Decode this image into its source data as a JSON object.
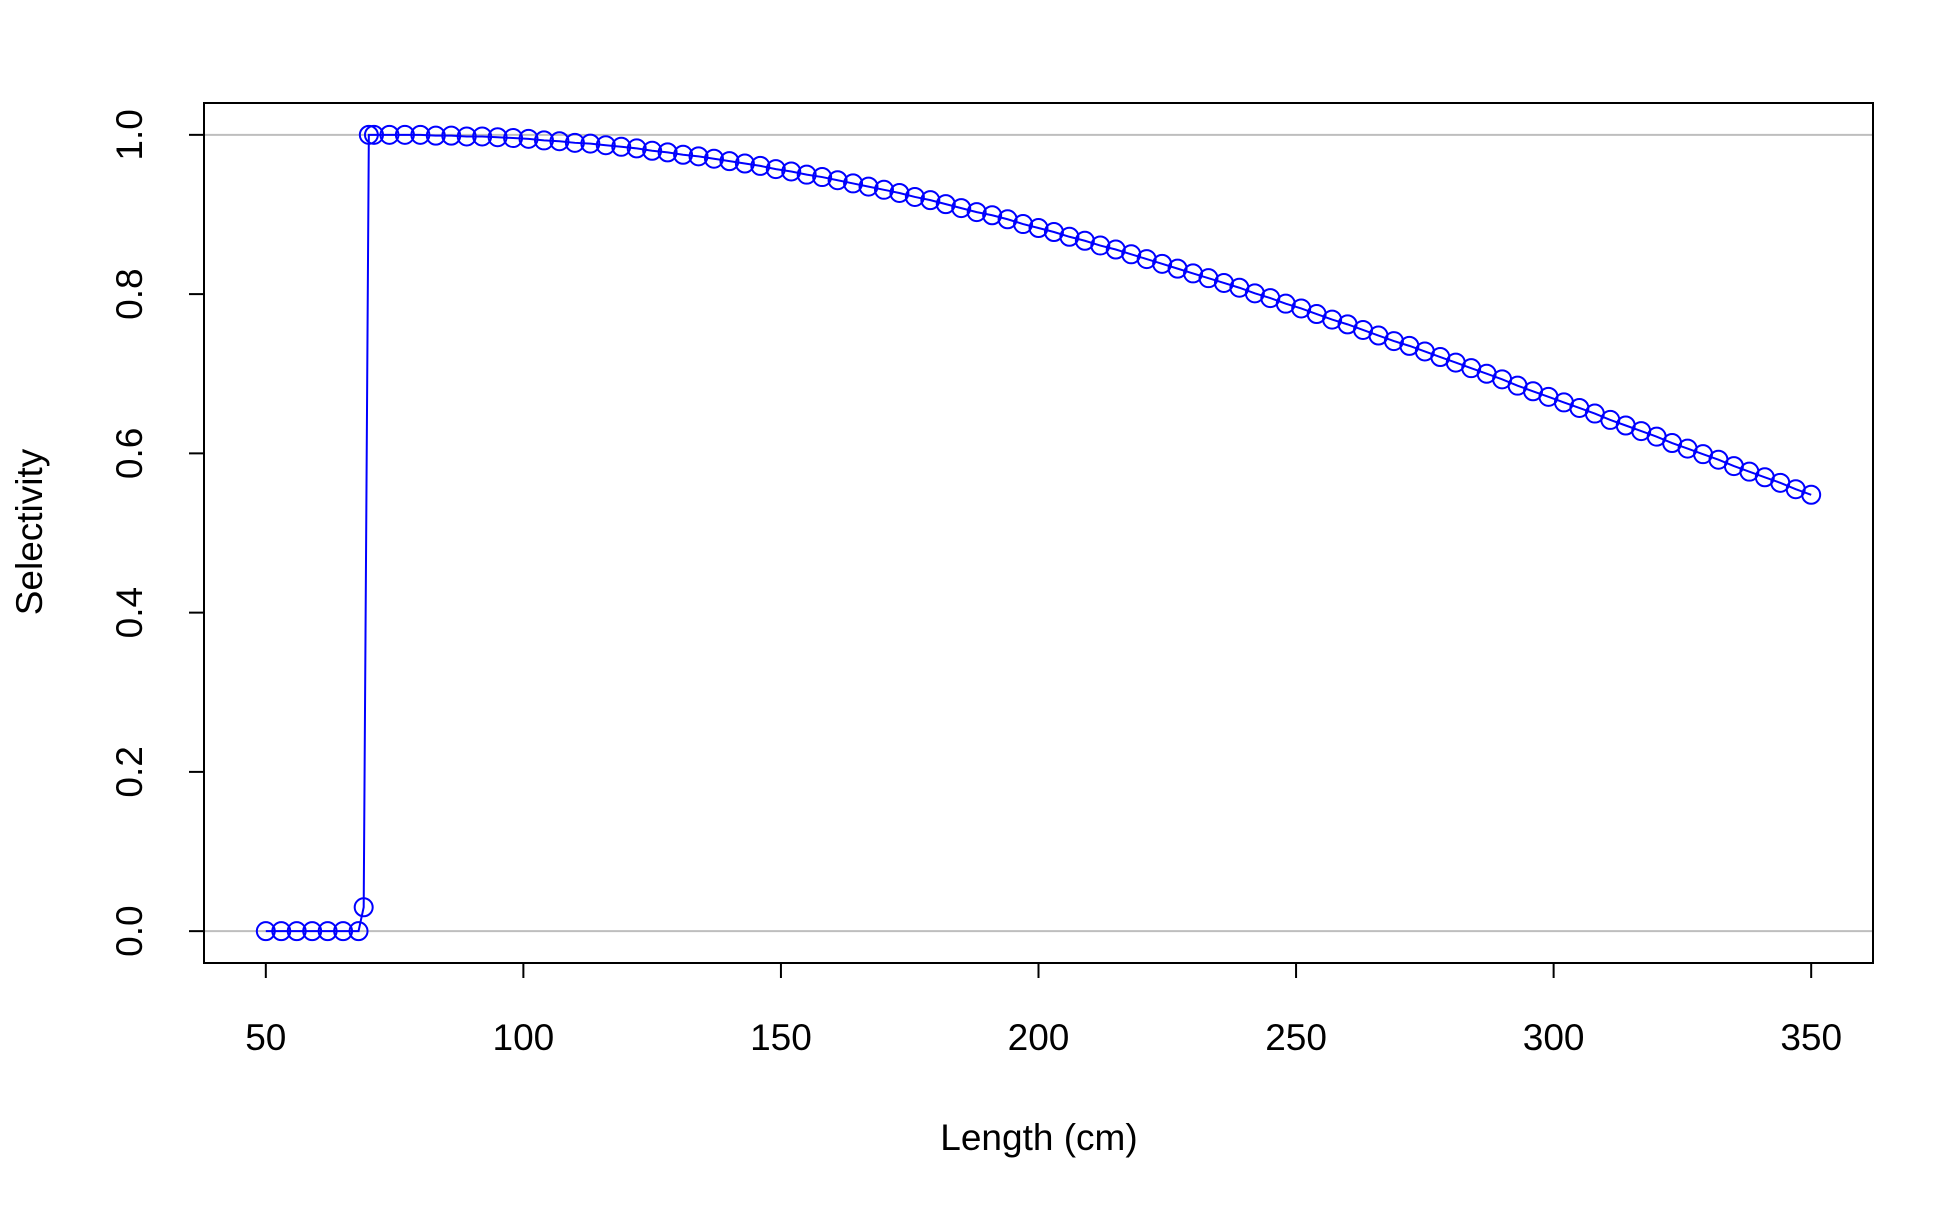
{
  "chart_data": {
    "type": "line",
    "x_label": "Length (cm)",
    "y_label": "Selectivity",
    "x": [
      50,
      53,
      56,
      59,
      62,
      65,
      68,
      69,
      70,
      71,
      74,
      77,
      80,
      83,
      86,
      89,
      92,
      95,
      98,
      101,
      104,
      107,
      110,
      113,
      116,
      119,
      122,
      125,
      128,
      131,
      134,
      137,
      140,
      143,
      146,
      149,
      152,
      155,
      158,
      161,
      164,
      167,
      170,
      173,
      176,
      179,
      182,
      185,
      188,
      191,
      194,
      197,
      200,
      203,
      206,
      209,
      212,
      215,
      218,
      221,
      224,
      227,
      230,
      233,
      236,
      239,
      242,
      245,
      248,
      251,
      254,
      257,
      260,
      263,
      266,
      269,
      272,
      275,
      278,
      281,
      284,
      287,
      290,
      293,
      296,
      299,
      302,
      305,
      308,
      311,
      314,
      317,
      320,
      323,
      326,
      329,
      332,
      335,
      338,
      341,
      344,
      347,
      350
    ],
    "series": [
      {
        "color": "#0000ff",
        "marker": "circle",
        "values": [
          0,
          0,
          0,
          0,
          0,
          0,
          0,
          0.03,
          1,
          1,
          1,
          1,
          1,
          0.999,
          0.999,
          0.998,
          0.998,
          0.997,
          0.996,
          0.995,
          0.993,
          0.992,
          0.99,
          0.989,
          0.987,
          0.985,
          0.983,
          0.98,
          0.978,
          0.975,
          0.973,
          0.97,
          0.967,
          0.964,
          0.961,
          0.957,
          0.954,
          0.95,
          0.947,
          0.943,
          0.939,
          0.935,
          0.931,
          0.927,
          0.922,
          0.918,
          0.913,
          0.908,
          0.903,
          0.899,
          0.894,
          0.888,
          0.883,
          0.878,
          0.872,
          0.867,
          0.861,
          0.856,
          0.85,
          0.844,
          0.838,
          0.832,
          0.826,
          0.82,
          0.814,
          0.808,
          0.801,
          0.795,
          0.788,
          0.782,
          0.775,
          0.768,
          0.762,
          0.755,
          0.748,
          0.741,
          0.735,
          0.728,
          0.721,
          0.714,
          0.707,
          0.7,
          0.693,
          0.685,
          0.678,
          0.671,
          0.664,
          0.657,
          0.65,
          0.642,
          0.635,
          0.628,
          0.621,
          0.613,
          0.606,
          0.599,
          0.592,
          0.584,
          0.577,
          0.57,
          0.563,
          0.555,
          0.548
        ]
      }
    ],
    "xlim": [
      38,
      362
    ],
    "xticks": [
      50,
      100,
      150,
      200,
      250,
      300,
      350
    ],
    "ylim": [
      -0.04,
      1.04
    ],
    "yticks": [
      {
        "value": 0,
        "label": "0.0"
      },
      0.2,
      0.4,
      0.6,
      0.8,
      {
        "value": 1,
        "label": "1.0"
      }
    ],
    "hlines": [
      0,
      1
    ],
    "hline_color": "#bebebe"
  }
}
